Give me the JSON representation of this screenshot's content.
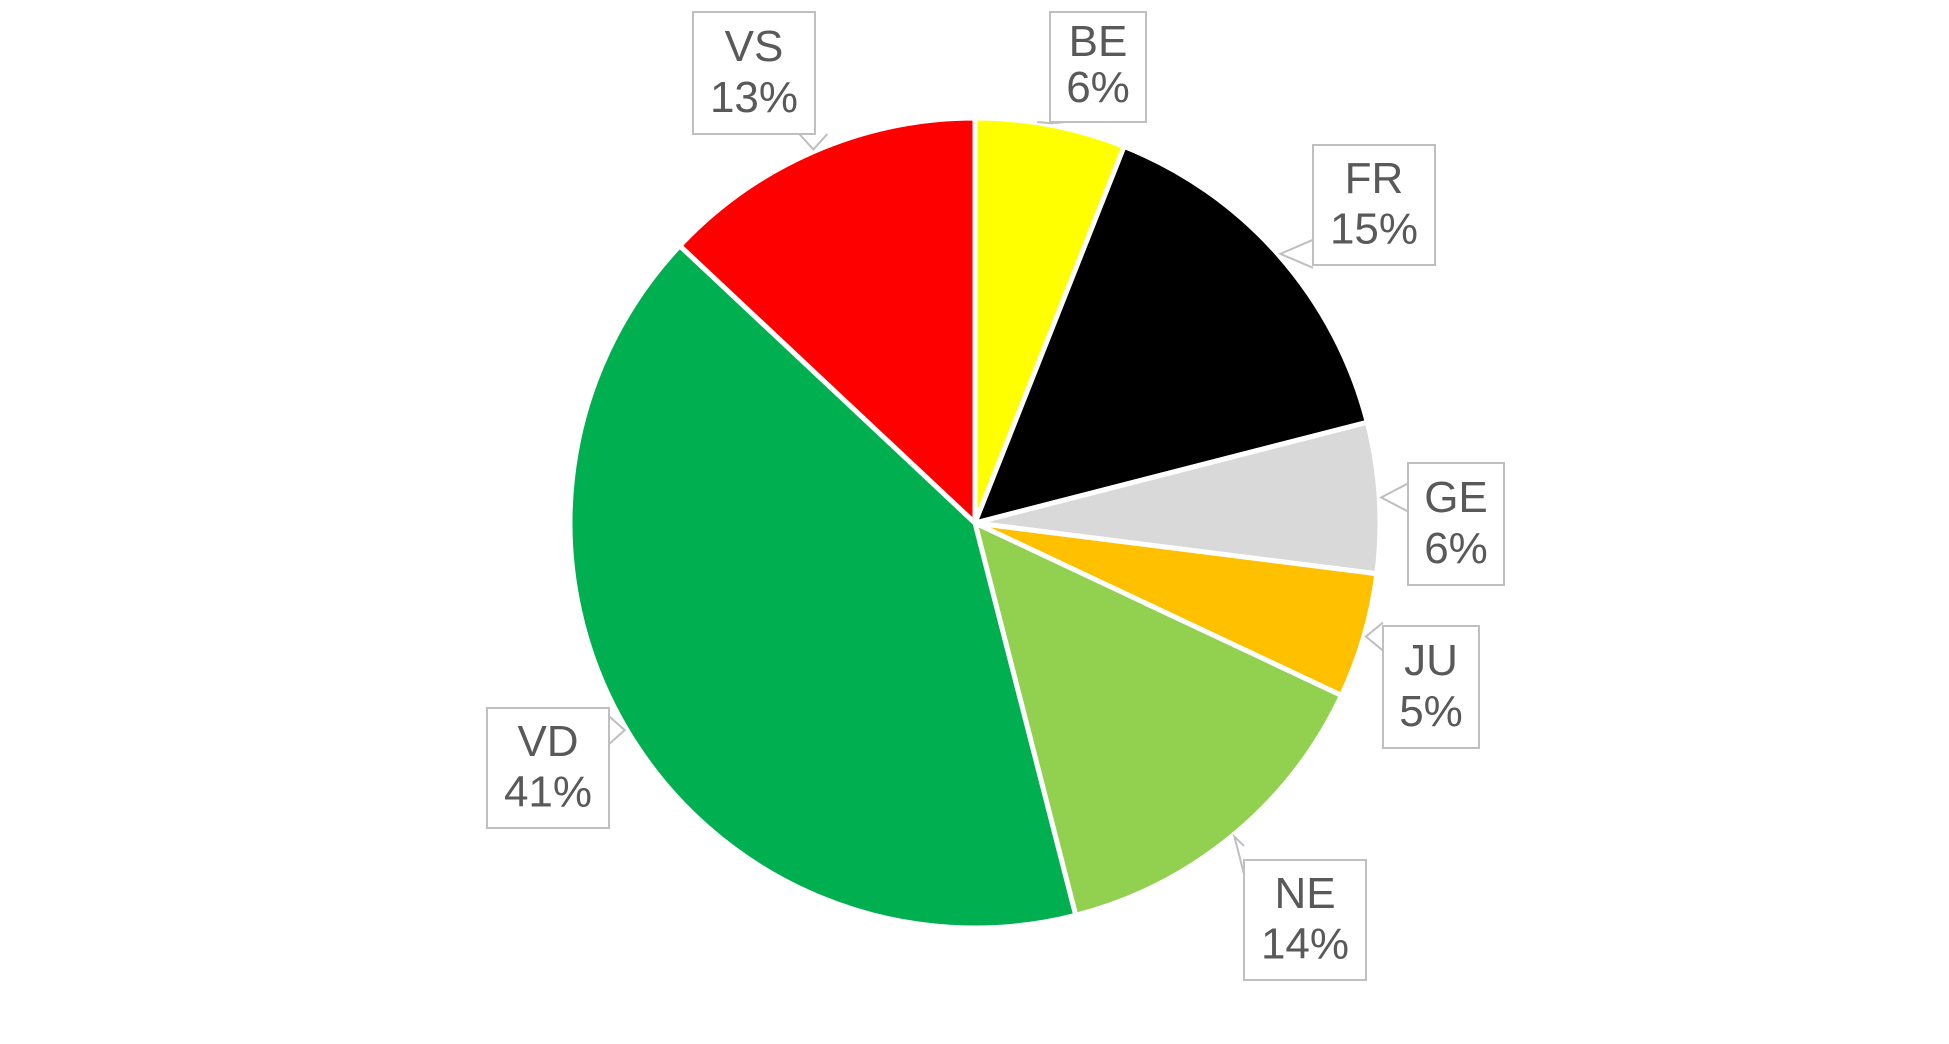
{
  "chart_data": {
    "type": "pie",
    "title": "",
    "start_angle_deg": 0,
    "direction": "clockwise",
    "slice_border_color": "#ffffff",
    "label_box_border_color": "#bfbfbf",
    "label_text_color": "#595959",
    "slices": [
      {
        "label": "BE",
        "value": 6,
        "value_label": "6%",
        "color": "#ffff00"
      },
      {
        "label": "FR",
        "value": 15,
        "value_label": "15%",
        "color": "#000000"
      },
      {
        "label": "GE",
        "value": 6,
        "value_label": "6%",
        "color": "#d9d9d9"
      },
      {
        "label": "JU",
        "value": 5,
        "value_label": "5%",
        "color": "#ffc000"
      },
      {
        "label": "NE",
        "value": 14,
        "value_label": "14%",
        "color": "#92d050"
      },
      {
        "label": "VD",
        "value": 41,
        "value_label": "41%",
        "color": "#00b050"
      },
      {
        "label": "VS",
        "value": 13,
        "value_label": "13%",
        "color": "#ff0000"
      }
    ]
  }
}
